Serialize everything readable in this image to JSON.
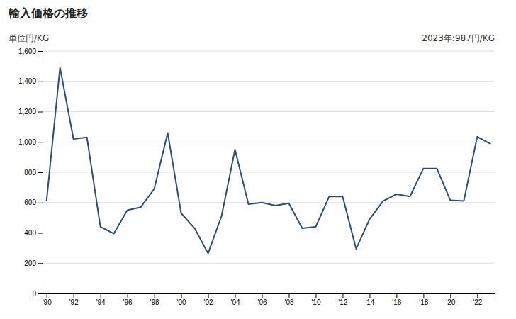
{
  "chart_data": {
    "type": "line",
    "title": "輸入価格の推移",
    "ylabel": "単位円/KG",
    "annotation": "2023年:987円/KG",
    "x": [
      1990,
      1991,
      1992,
      1993,
      1994,
      1995,
      1996,
      1997,
      1998,
      1999,
      2000,
      2001,
      2002,
      2003,
      2004,
      2005,
      2006,
      2007,
      2008,
      2009,
      2010,
      2011,
      2012,
      2013,
      2014,
      2015,
      2016,
      2017,
      2018,
      2019,
      2020,
      2021,
      2022,
      2023
    ],
    "values": [
      610,
      1490,
      1020,
      1030,
      440,
      395,
      550,
      570,
      690,
      1060,
      530,
      430,
      265,
      510,
      950,
      590,
      600,
      580,
      595,
      430,
      440,
      640,
      640,
      295,
      490,
      610,
      655,
      640,
      825,
      825,
      615,
      610,
      1035,
      987
    ],
    "color": "#2e4d7b",
    "xlim": [
      1989.7,
      2023.3
    ],
    "xticks": [
      {
        "value": 1990,
        "label": "'90"
      },
      {
        "value": 1992,
        "label": "'92"
      },
      {
        "value": 1994,
        "label": "'94"
      },
      {
        "value": 1996,
        "label": "'96"
      },
      {
        "value": 1998,
        "label": "'98"
      },
      {
        "value": 2000,
        "label": "'00"
      },
      {
        "value": 2002,
        "label": "'02"
      },
      {
        "value": 2004,
        "label": "'04"
      },
      {
        "value": 2006,
        "label": "'06"
      },
      {
        "value": 2008,
        "label": "'08"
      },
      {
        "value": 2010,
        "label": "'10"
      },
      {
        "value": 2012,
        "label": "'12"
      },
      {
        "value": 2014,
        "label": "'14"
      },
      {
        "value": 2016,
        "label": "'16"
      },
      {
        "value": 2018,
        "label": "'18"
      },
      {
        "value": 2020,
        "label": "'20"
      },
      {
        "value": 2022,
        "label": "'22"
      }
    ],
    "ylim": [
      0,
      1600
    ],
    "yticks": [
      0,
      200,
      400,
      600,
      800,
      {
        "value": 1000,
        "label": "1,000"
      },
      {
        "value": 1200,
        "label": "1,200"
      },
      {
        "value": 1400,
        "label": "1,400"
      },
      {
        "value": 1600,
        "label": "1,600"
      }
    ],
    "grid": true
  }
}
